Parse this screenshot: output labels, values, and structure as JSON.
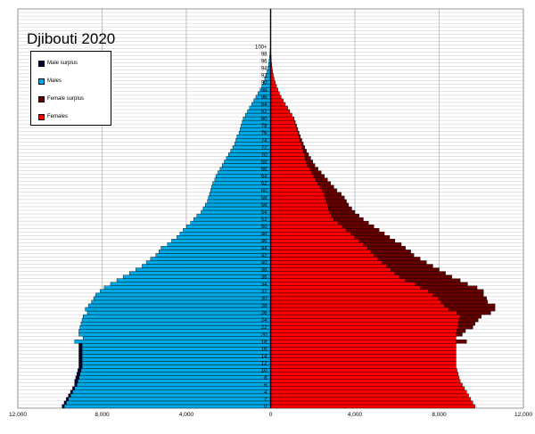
{
  "chart_data": {
    "type": "bar",
    "orientation": "horizontal",
    "title": "Djibouti 2020",
    "xlim": [
      -12000,
      12000
    ],
    "x_ticks": [
      -12000,
      -8000,
      -4000,
      0,
      4000,
      8000,
      12000
    ],
    "x_tick_labels": [
      "12,000",
      "8,000",
      "4,000",
      "0",
      "4,000",
      "8,000",
      "12,000"
    ],
    "age_labels": [
      "0",
      "2",
      "4",
      "6",
      "8",
      "10",
      "12",
      "14",
      "16",
      "18",
      "20",
      "22",
      "24",
      "26",
      "28",
      "30",
      "32",
      "34",
      "36",
      "38",
      "40",
      "42",
      "44",
      "46",
      "48",
      "50",
      "52",
      "54",
      "56",
      "58",
      "60",
      "62",
      "64",
      "66",
      "68",
      "70",
      "72",
      "74",
      "76",
      "78",
      "80",
      "82",
      "84",
      "86",
      "88",
      "90",
      "92",
      "94",
      "96",
      "98",
      "100+"
    ],
    "grid": true,
    "legend_placement": "top-left",
    "legend": [
      "Male surplus",
      "Males",
      "Female surplus",
      "Females"
    ],
    "series": [
      {
        "name": "Males",
        "values": [
          9800,
          9700,
          9600,
          9500,
          9400,
          9300,
          9200,
          9150,
          9100,
          9050,
          9000,
          8950,
          8950,
          8950,
          8950,
          8950,
          8950,
          8950,
          9300,
          8900,
          9100,
          9100,
          9050,
          9000,
          8950,
          8900,
          8700,
          8800,
          8650,
          8500,
          8400,
          8300,
          8100,
          7900,
          7600,
          7300,
          7000,
          6700,
          6400,
          6100,
          5900,
          5700,
          5450,
          5300,
          5200,
          4900,
          4700,
          4450,
          4300,
          4150,
          4000,
          3800,
          3650,
          3500,
          3300,
          3200,
          3100,
          3000,
          2950,
          2900,
          2850,
          2800,
          2750,
          2650,
          2600,
          2500,
          2400,
          2300,
          2200,
          2100,
          2000,
          1900,
          1800,
          1700,
          1650,
          1600,
          1500,
          1450,
          1400,
          1350,
          1300,
          1200,
          1100,
          1000,
          900,
          800,
          700,
          600,
          500,
          420,
          350,
          280,
          220,
          170,
          130,
          100,
          70,
          50,
          35,
          25,
          15,
          8,
          4,
          2,
          1,
          0,
          0,
          0,
          0,
          0,
          0
        ]
      },
      {
        "name": "Females",
        "values": [
          9700,
          9600,
          9500,
          9400,
          9300,
          9200,
          9100,
          9000,
          8950,
          8900,
          8850,
          8800,
          8800,
          8800,
          8800,
          8800,
          8800,
          8800,
          8800,
          8800,
          8800,
          8850,
          8900,
          8900,
          8950,
          9000,
          8850,
          8450,
          8250,
          8100,
          7950,
          7700,
          7500,
          7100,
          6850,
          6400,
          6100,
          5900,
          5700,
          5500,
          5300,
          5100,
          4900,
          4750,
          4600,
          4400,
          4200,
          4000,
          3800,
          3600,
          3400,
          3200,
          3000,
          2900,
          2800,
          2750,
          2700,
          2650,
          2600,
          2550,
          2450,
          2350,
          2250,
          2150,
          2050,
          1950,
          1850,
          1750,
          1700,
          1650,
          1600,
          1550,
          1500,
          1450,
          1400,
          1350,
          1300,
          1250,
          1200,
          1150,
          1100,
          1000,
          900,
          800,
          700,
          600,
          500,
          420,
          350,
          280,
          220,
          170,
          130,
          100,
          70,
          50,
          35,
          25,
          15,
          8,
          4,
          2,
          1,
          0,
          0,
          0,
          0,
          0,
          0,
          0
        ]
      },
      {
        "name": "Male surplus",
        "values": [
          100,
          100,
          100,
          100,
          100,
          100,
          100,
          150,
          150,
          150,
          150,
          150,
          150,
          150,
          150,
          150,
          150,
          150,
          0,
          0,
          0,
          0,
          0,
          0,
          0,
          0,
          0,
          0,
          0,
          0,
          0,
          0,
          0,
          0,
          0,
          0,
          0,
          0,
          0,
          0,
          0,
          0,
          0,
          0,
          0,
          0,
          0,
          0,
          0,
          0,
          0,
          0,
          0,
          0,
          0,
          0,
          0,
          0,
          0,
          0,
          0,
          0,
          0,
          0,
          0,
          0,
          0,
          0,
          0,
          0,
          0,
          0,
          0,
          0,
          0,
          0,
          0,
          0,
          0,
          0,
          0,
          0,
          0,
          0,
          0,
          0,
          0,
          0,
          0,
          0,
          0,
          0,
          0,
          0,
          0,
          0,
          0,
          0,
          0,
          0,
          0,
          0,
          0,
          0,
          0,
          0,
          0,
          0,
          0
        ]
      },
      {
        "name": "Female surplus",
        "values": [
          0,
          0,
          0,
          0,
          0,
          0,
          0,
          0,
          0,
          0,
          0,
          0,
          0,
          0,
          0,
          0,
          0,
          0,
          500,
          0,
          300,
          400,
          700,
          800,
          900,
          1000,
          1600,
          2200,
          2400,
          2200,
          2300,
          2400,
          2600,
          2700,
          2500,
          2600,
          2500,
          2400,
          2300,
          2200,
          2100,
          2000,
          1900,
          1900,
          1800,
          1800,
          1700,
          1650,
          1600,
          1550,
          1500,
          1450,
          1400,
          1300,
          1200,
          1100,
          1000,
          950,
          900,
          800,
          700,
          650,
          600,
          550,
          500,
          450,
          400,
          350,
          300,
          250,
          200,
          150,
          120,
          100,
          80,
          60,
          50,
          40,
          30,
          20,
          15,
          10,
          5,
          5,
          0,
          0,
          0,
          0,
          0,
          0,
          0,
          0,
          0,
          0,
          0,
          0,
          0,
          0,
          0,
          0,
          0,
          0,
          0,
          0,
          0,
          0,
          0,
          0,
          0
        ]
      }
    ],
    "colors": {
      "males": "#00a8e6",
      "females": "#ff0000",
      "male_surplus": "#000033",
      "female_surplus": "#660000",
      "grid": "#c8c8c8"
    }
  }
}
